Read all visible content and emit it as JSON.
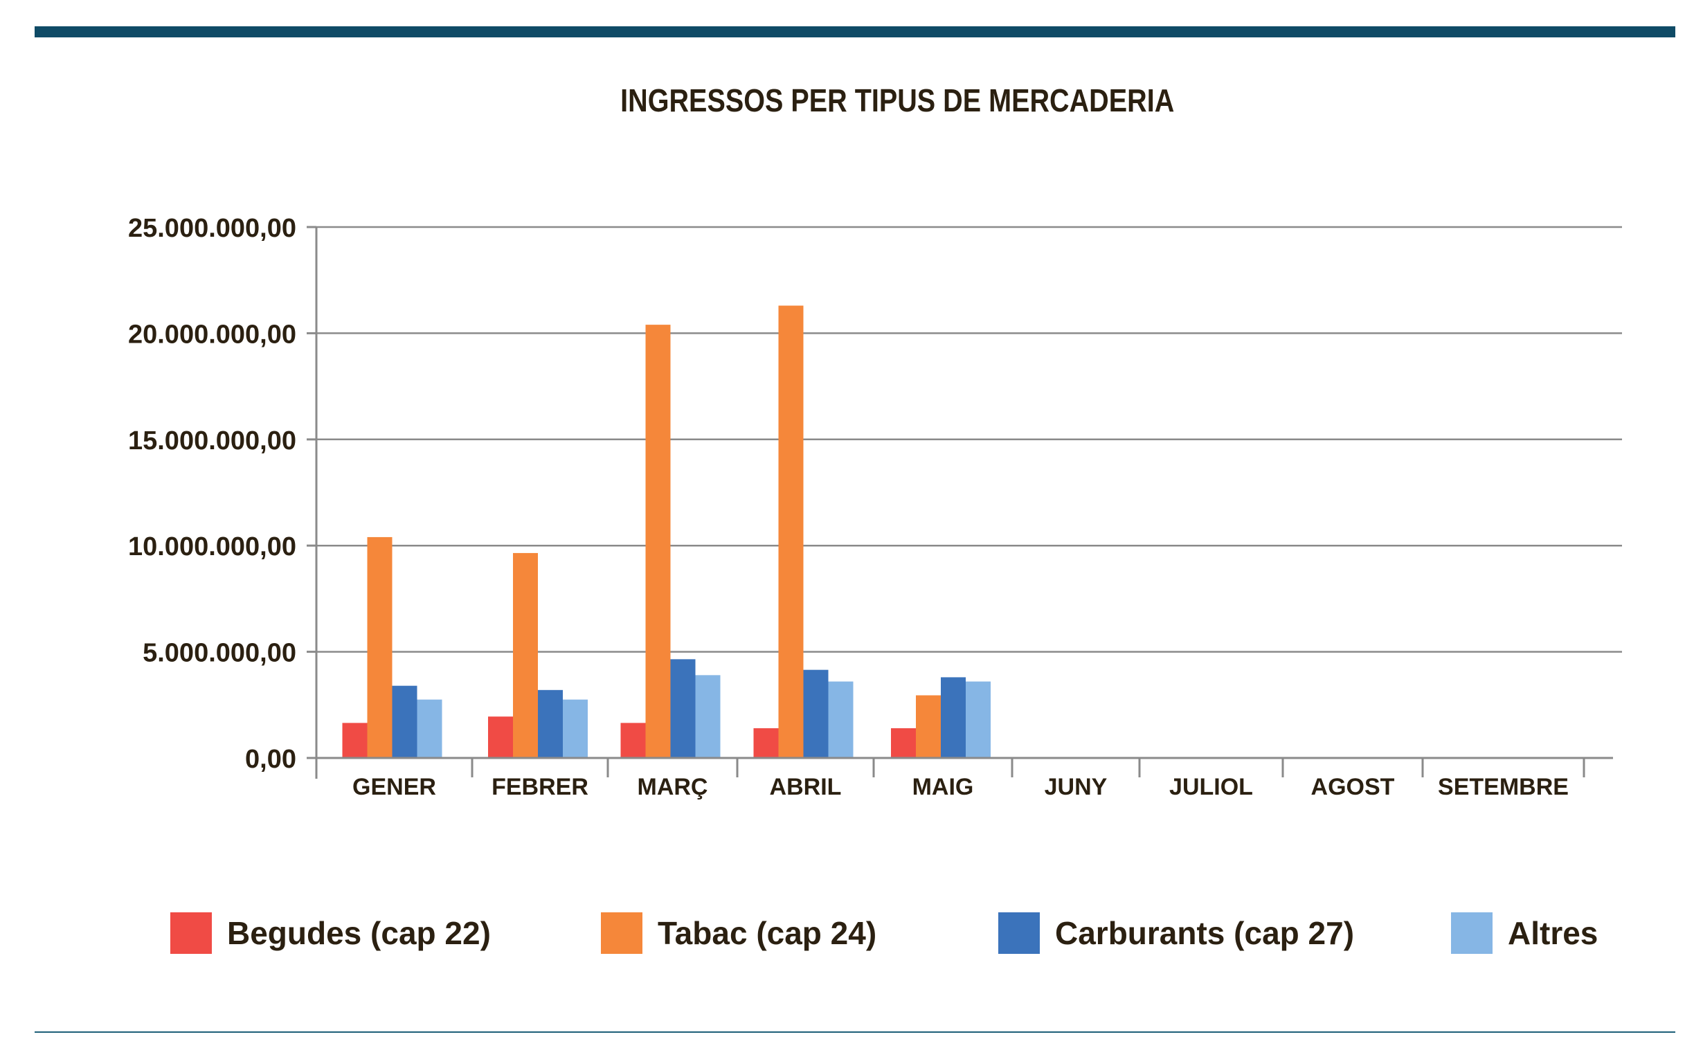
{
  "chart_data": {
    "type": "bar",
    "title": "INGRESSOS PER TIPUS DE MERCADERIA",
    "xlabel": "",
    "ylabel": "",
    "ylim": [
      0,
      25000000
    ],
    "yticks": [
      "0,00",
      "5.000.000,00",
      "10.000.000,00",
      "15.000.000,00",
      "20.000.000,00",
      "25.000.000,00"
    ],
    "ytick_values": [
      0,
      5000000,
      10000000,
      15000000,
      20000000,
      25000000
    ],
    "grid": true,
    "legend_position": "bottom",
    "categories": [
      "GENER",
      "FEBRER",
      "MARÇ",
      "ABRIL",
      "MAIG",
      "JUNY",
      "JULIOL",
      "AGOST",
      "SETEMBRE"
    ],
    "series": [
      {
        "name": "Begudes (cap 22)",
        "color": "#f04b45",
        "values": [
          1650000,
          1950000,
          1650000,
          1400000,
          1400000,
          null,
          null,
          null,
          null
        ]
      },
      {
        "name": "Tabac (cap 24)",
        "color": "#f5873a",
        "values": [
          10400000,
          9650000,
          20400000,
          21300000,
          2950000,
          null,
          null,
          null,
          null
        ]
      },
      {
        "name": "Carburants (cap 27)",
        "color": "#3b73bb",
        "values": [
          3400000,
          3200000,
          4650000,
          4150000,
          3800000,
          null,
          null,
          null,
          null
        ]
      },
      {
        "name": "Altres",
        "color": "#86b6e5",
        "values": [
          2750000,
          2750000,
          3900000,
          3600000,
          3600000,
          null,
          null,
          null,
          null
        ]
      }
    ]
  },
  "colors": {
    "rule": "#0f4b66",
    "grid": "#8a8a8a",
    "axis": "#8a8a8a",
    "text": "#2b2011"
  }
}
